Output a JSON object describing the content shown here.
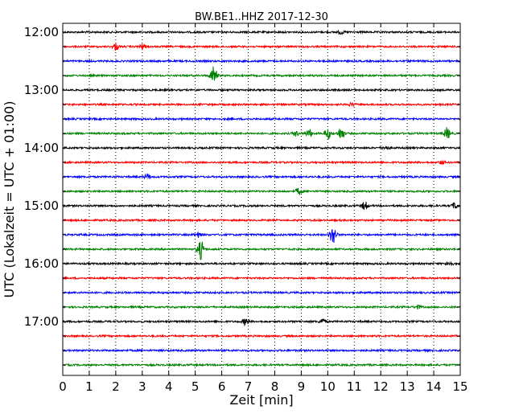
{
  "chart_data": {
    "type": "line",
    "title": "BW.BE1..HHZ 2017-12-30",
    "xlabel": "Zeit  [min]",
    "ylabel": "UTC (Lokalzeit = UTC + 01:00)",
    "xlim": [
      0,
      15
    ],
    "x_ticks": [
      "0",
      "1",
      "2",
      "3",
      "4",
      "5",
      "6",
      "7",
      "8",
      "9",
      "10",
      "11",
      "12",
      "13",
      "14",
      "15"
    ],
    "y_tick_labels": [
      "12:00",
      "13:00",
      "14:00",
      "15:00",
      "16:00",
      "17:00"
    ],
    "grid": "vertical-dotted",
    "trace_colors": [
      "#000000",
      "#ff0000",
      "#0000ff",
      "#008000"
    ],
    "traces": [
      {
        "start": "12:00",
        "color": "#000000",
        "events": [
          {
            "t": 10.5,
            "amp": 2
          }
        ]
      },
      {
        "start": "12:15",
        "color": "#ff0000",
        "events": [
          {
            "t": 2.0,
            "amp": 4
          },
          {
            "t": 3.0,
            "amp": 3
          }
        ]
      },
      {
        "start": "12:30",
        "color": "#0000ff",
        "events": []
      },
      {
        "start": "12:45",
        "color": "#008000",
        "events": [
          {
            "t": 5.7,
            "amp": 12
          }
        ]
      },
      {
        "start": "13:00",
        "color": "#000000",
        "events": []
      },
      {
        "start": "13:15",
        "color": "#ff0000",
        "events": [
          {
            "t": 10.9,
            "amp": 2
          }
        ]
      },
      {
        "start": "13:30",
        "color": "#0000ff",
        "events": []
      },
      {
        "start": "13:45",
        "color": "#008000",
        "events": [
          {
            "t": 8.8,
            "amp": 3
          },
          {
            "t": 9.3,
            "amp": 5
          },
          {
            "t": 10.0,
            "amp": 7
          },
          {
            "t": 10.5,
            "amp": 8
          },
          {
            "t": 14.5,
            "amp": 7
          }
        ]
      },
      {
        "start": "14:00",
        "color": "#000000",
        "events": [
          {
            "t": 12.2,
            "amp": 2
          }
        ]
      },
      {
        "start": "14:15",
        "color": "#ff0000",
        "events": [
          {
            "t": 14.3,
            "amp": 2
          }
        ]
      },
      {
        "start": "14:30",
        "color": "#0000ff",
        "events": [
          {
            "t": 3.2,
            "amp": 3
          }
        ]
      },
      {
        "start": "14:45",
        "color": "#008000",
        "events": [
          {
            "t": 8.9,
            "amp": 4
          }
        ]
      },
      {
        "start": "15:00",
        "color": "#000000",
        "events": [
          {
            "t": 11.4,
            "amp": 5
          },
          {
            "t": 14.8,
            "amp": 4
          }
        ]
      },
      {
        "start": "15:15",
        "color": "#ff0000",
        "events": []
      },
      {
        "start": "15:30",
        "color": "#0000ff",
        "events": [
          {
            "t": 5.1,
            "amp": 3
          },
          {
            "t": 10.2,
            "amp": 12
          }
        ]
      },
      {
        "start": "15:45",
        "color": "#008000",
        "events": [
          {
            "t": 5.2,
            "amp": 12
          }
        ]
      },
      {
        "start": "16:00",
        "color": "#000000",
        "events": [
          {
            "t": 14.6,
            "amp": 3
          }
        ]
      },
      {
        "start": "16:15",
        "color": "#ff0000",
        "events": []
      },
      {
        "start": "16:30",
        "color": "#0000ff",
        "events": []
      },
      {
        "start": "16:45",
        "color": "#008000",
        "events": [
          {
            "t": 13.4,
            "amp": 2
          }
        ]
      },
      {
        "start": "17:00",
        "color": "#000000",
        "events": [
          {
            "t": 6.9,
            "amp": 4
          },
          {
            "t": 9.8,
            "amp": 3
          }
        ]
      },
      {
        "start": "17:15",
        "color": "#ff0000",
        "events": []
      },
      {
        "start": "17:30",
        "color": "#0000ff",
        "events": []
      },
      {
        "start": "17:45",
        "color": "#008000",
        "events": []
      }
    ]
  }
}
